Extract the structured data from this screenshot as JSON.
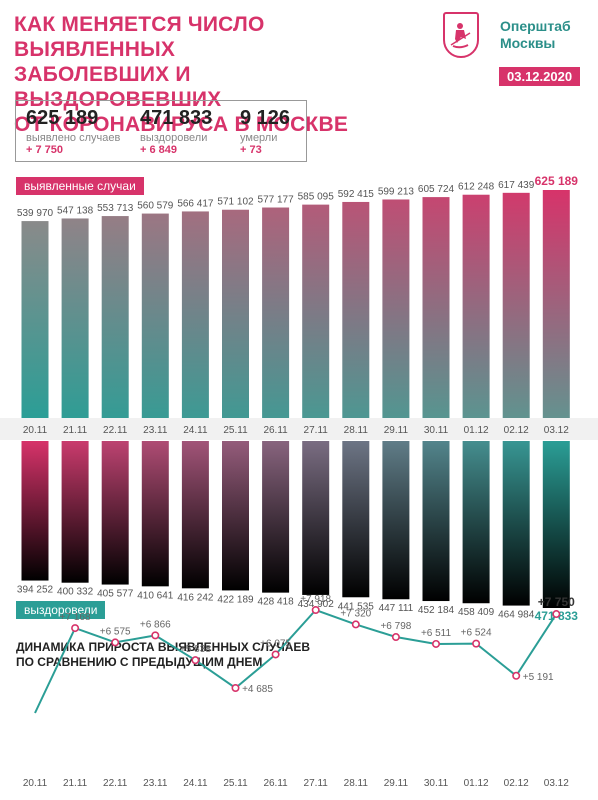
{
  "header": {
    "title_lines": [
      "КАК МЕНЯЕТСЯ ЧИСЛО ВЫЯВЛЕННЫХ",
      "ЗАБОЛЕВШИХ И ВЫЗДОРОВЕВШИХ",
      "ОТ КОРОНАВИРУСА В МОСКВЕ"
    ],
    "org_lines": [
      "Оперштаб",
      "Москвы"
    ],
    "date": "03.12.2020"
  },
  "stats": [
    {
      "value": "625 189",
      "label": "выявлено случаев",
      "delta": "+ 7 750"
    },
    {
      "value": "471 833",
      "label": "выздоровели",
      "delta": "+ 6 849"
    },
    {
      "value": "9 126",
      "label": "умерли",
      "delta": "+ 73"
    }
  ],
  "legend": {
    "cases": "выявленные случаи",
    "recovered": "выздоровели"
  },
  "subtitle_lines": [
    "ДИНАМИКА ПРИРОСТА ВЫЯВЛЕННЫХ СЛУЧАЕВ",
    "ПО СРАВНЕНИЮ С ПРЕДЫДУЩИМ ДНЕМ"
  ],
  "colors": {
    "pink": "#d7336a",
    "teal": "#2b9e96",
    "grey": "#8a8a8a"
  },
  "chart_data": [
    {
      "type": "bar",
      "categories": [
        "20.11",
        "21.11",
        "22.11",
        "23.11",
        "24.11",
        "25.11",
        "26.11",
        "27.11",
        "28.11",
        "29.11",
        "30.11",
        "01.12",
        "02.12",
        "03.12"
      ],
      "values": [
        539970,
        547138,
        553713,
        560579,
        566417,
        571102,
        577177,
        585095,
        592415,
        599213,
        605724,
        612248,
        617439,
        625189
      ],
      "labels": [
        "539 970",
        "547 138",
        "553 713",
        "560 579",
        "566 417",
        "571 102",
        "577 177",
        "585 095",
        "592 415",
        "599 213",
        "605 724",
        "612 248",
        "617 439",
        "625 189"
      ],
      "series_label": "выявленные случаи"
    },
    {
      "type": "bar",
      "categories": [
        "20.11",
        "21.11",
        "22.11",
        "23.11",
        "24.11",
        "25.11",
        "26.11",
        "27.11",
        "28.11",
        "29.11",
        "30.11",
        "01.12",
        "02.12",
        "03.12"
      ],
      "values": [
        394252,
        400332,
        405577,
        410641,
        416242,
        422189,
        428418,
        434902,
        441535,
        447111,
        452184,
        458409,
        464984,
        471833
      ],
      "labels": [
        "394 252",
        "400 332",
        "405 577",
        "410 641",
        "416 242",
        "422 189",
        "428 418",
        "434 902",
        "441 535",
        "447 111",
        "452 184",
        "458 409",
        "464 984",
        "471 833"
      ],
      "series_label": "выздоровели"
    },
    {
      "type": "line",
      "title": "ДИНАМИКА ПРИРОСТА ВЫЯВЛЕННЫХ СЛУЧАЕВ ПО СРАВНЕНИЮ С ПРЕДЫДУЩИМ ДНЕМ",
      "x": [
        "20.11",
        "21.11",
        "22.11",
        "23.11",
        "24.11",
        "25.11",
        "26.11",
        "27.11",
        "28.11",
        "29.11",
        "30.11",
        "01.12",
        "02.12",
        "03.12"
      ],
      "y": [
        null,
        7168,
        6575,
        6866,
        5838,
        4685,
        6075,
        7918,
        7320,
        6798,
        6511,
        6524,
        5191,
        7750
      ],
      "labels": [
        "",
        "+7 168",
        "+6 575",
        "+6 866",
        "+5 838",
        "+4 685",
        "+6 075",
        "+7 918",
        "+7 320",
        "+6 798",
        "+6 511",
        "+6 524",
        "+5 191",
        "+7 750"
      ]
    }
  ]
}
